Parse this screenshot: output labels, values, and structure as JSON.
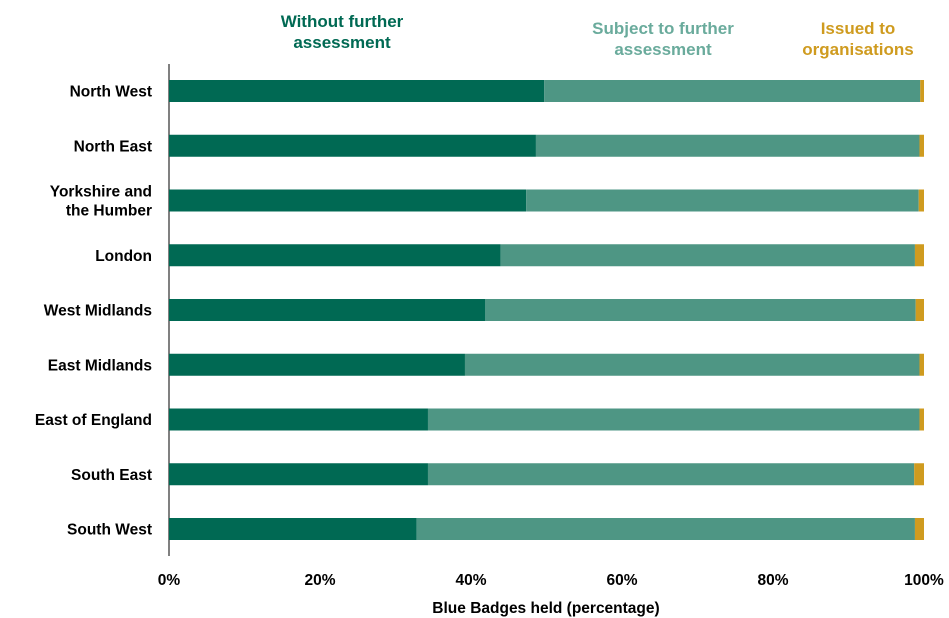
{
  "chart_data": {
    "type": "bar",
    "orientation": "horizontal",
    "stacked": true,
    "title": "",
    "xlabel": "Blue Badges held (percentage)",
    "ylabel": "",
    "xlim": [
      0,
      100
    ],
    "x_ticks": [
      "0%",
      "20%",
      "40%",
      "60%",
      "80%",
      "100%"
    ],
    "categories": [
      "North West",
      "North East",
      "Yorkshire and the Humber",
      "London",
      "West Midlands",
      "East Midlands",
      "East of England",
      "South East",
      "South West"
    ],
    "category_lines": [
      [
        "North West"
      ],
      [
        "North East"
      ],
      [
        "Yorkshire and",
        "the Humber"
      ],
      [
        "London"
      ],
      [
        "West Midlands"
      ],
      [
        "East Midlands"
      ],
      [
        "East of England"
      ],
      [
        "South East"
      ],
      [
        "South West"
      ]
    ],
    "series": [
      {
        "name": "Without further assessment",
        "legend_lines": [
          "Without further",
          "assessment"
        ],
        "color": "#006953",
        "values": [
          49.7,
          48.6,
          47.3,
          43.9,
          41.9,
          39.2,
          34.3,
          34.3,
          32.8
        ]
      },
      {
        "name": "Subject to further assessment",
        "legend_lines": [
          "Subject to further",
          "assessment"
        ],
        "color": "#4e9684",
        "values": [
          49.8,
          50.8,
          52.0,
          54.9,
          57.0,
          60.2,
          65.1,
          64.4,
          66.0
        ]
      },
      {
        "name": "Issued to organisations",
        "legend_lines": [
          "Issued to",
          "organisations"
        ],
        "color": "#cf9b1f",
        "values": [
          0.5,
          0.6,
          0.7,
          1.2,
          1.1,
          0.6,
          0.6,
          1.3,
          1.2
        ]
      }
    ],
    "legend_text_colors": [
      "#006953",
      "#6aab9c",
      "#cf9b1f"
    ],
    "grid": false,
    "legend_position": "top"
  }
}
